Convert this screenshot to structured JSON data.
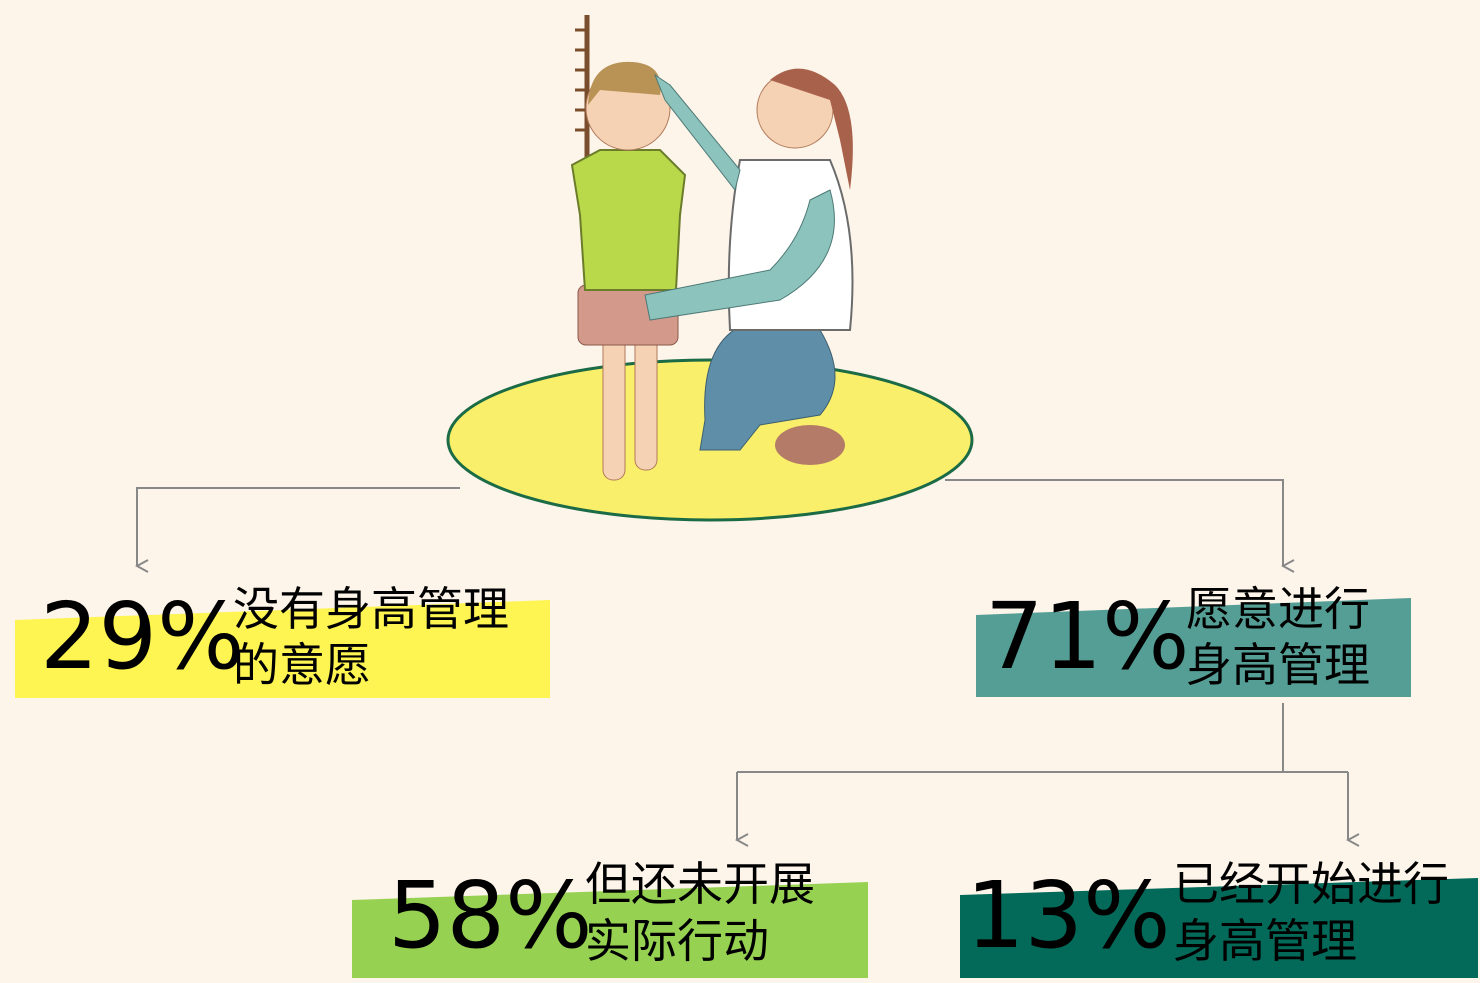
{
  "nodes": [
    {
      "percent": "29%",
      "lines": [
        "没有身高管理",
        "的意愿"
      ]
    },
    {
      "percent": "71%",
      "lines": [
        "愿意进行",
        "身高管理"
      ]
    },
    {
      "percent": "58%",
      "lines": [
        "但还未开展",
        "实际行动"
      ]
    },
    {
      "percent": "13%",
      "lines": [
        "已经开始进行",
        "身高管理"
      ]
    }
  ]
}
